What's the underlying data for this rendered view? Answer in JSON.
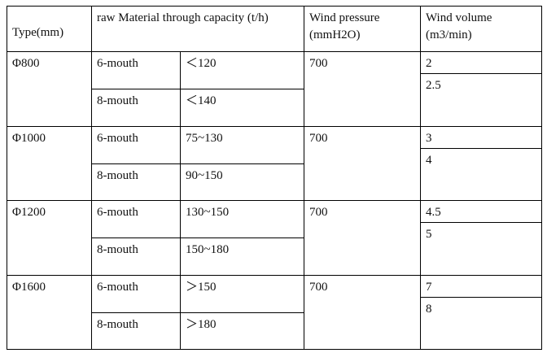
{
  "table": {
    "header": [
      "Type(mm)",
      "raw Material through capacity (t/h)",
      "Wind pressure (mmH2O)",
      "Wind volume (m3/min)"
    ],
    "rows": [
      {
        "type": "Φ800",
        "capacity": [
          [
            "6-mouth",
            "＜120"
          ],
          [
            "8-mouth",
            "＜140"
          ]
        ],
        "pressure": "700",
        "volume": [
          "2",
          "2.5"
        ]
      },
      {
        "type": "Φ1000",
        "capacity": [
          [
            "6-mouth",
            "75~130"
          ],
          [
            "8-mouth",
            "90~150"
          ]
        ],
        "pressure": "700",
        "volume": [
          "3",
          "4"
        ]
      },
      {
        "type": "Φ1200",
        "capacity": [
          [
            "6-mouth",
            "130~150"
          ],
          [
            "8-mouth",
            "150~180"
          ]
        ],
        "pressure": "700",
        "volume": [
          "4.5",
          "5"
        ]
      },
      {
        "type": "Φ1600",
        "capacity": [
          [
            "6-mouth",
            "＞150"
          ],
          [
            "8-mouth",
            "＞180"
          ]
        ],
        "pressure": "700",
        "volume": [
          "7",
          "8"
        ]
      }
    ]
  }
}
